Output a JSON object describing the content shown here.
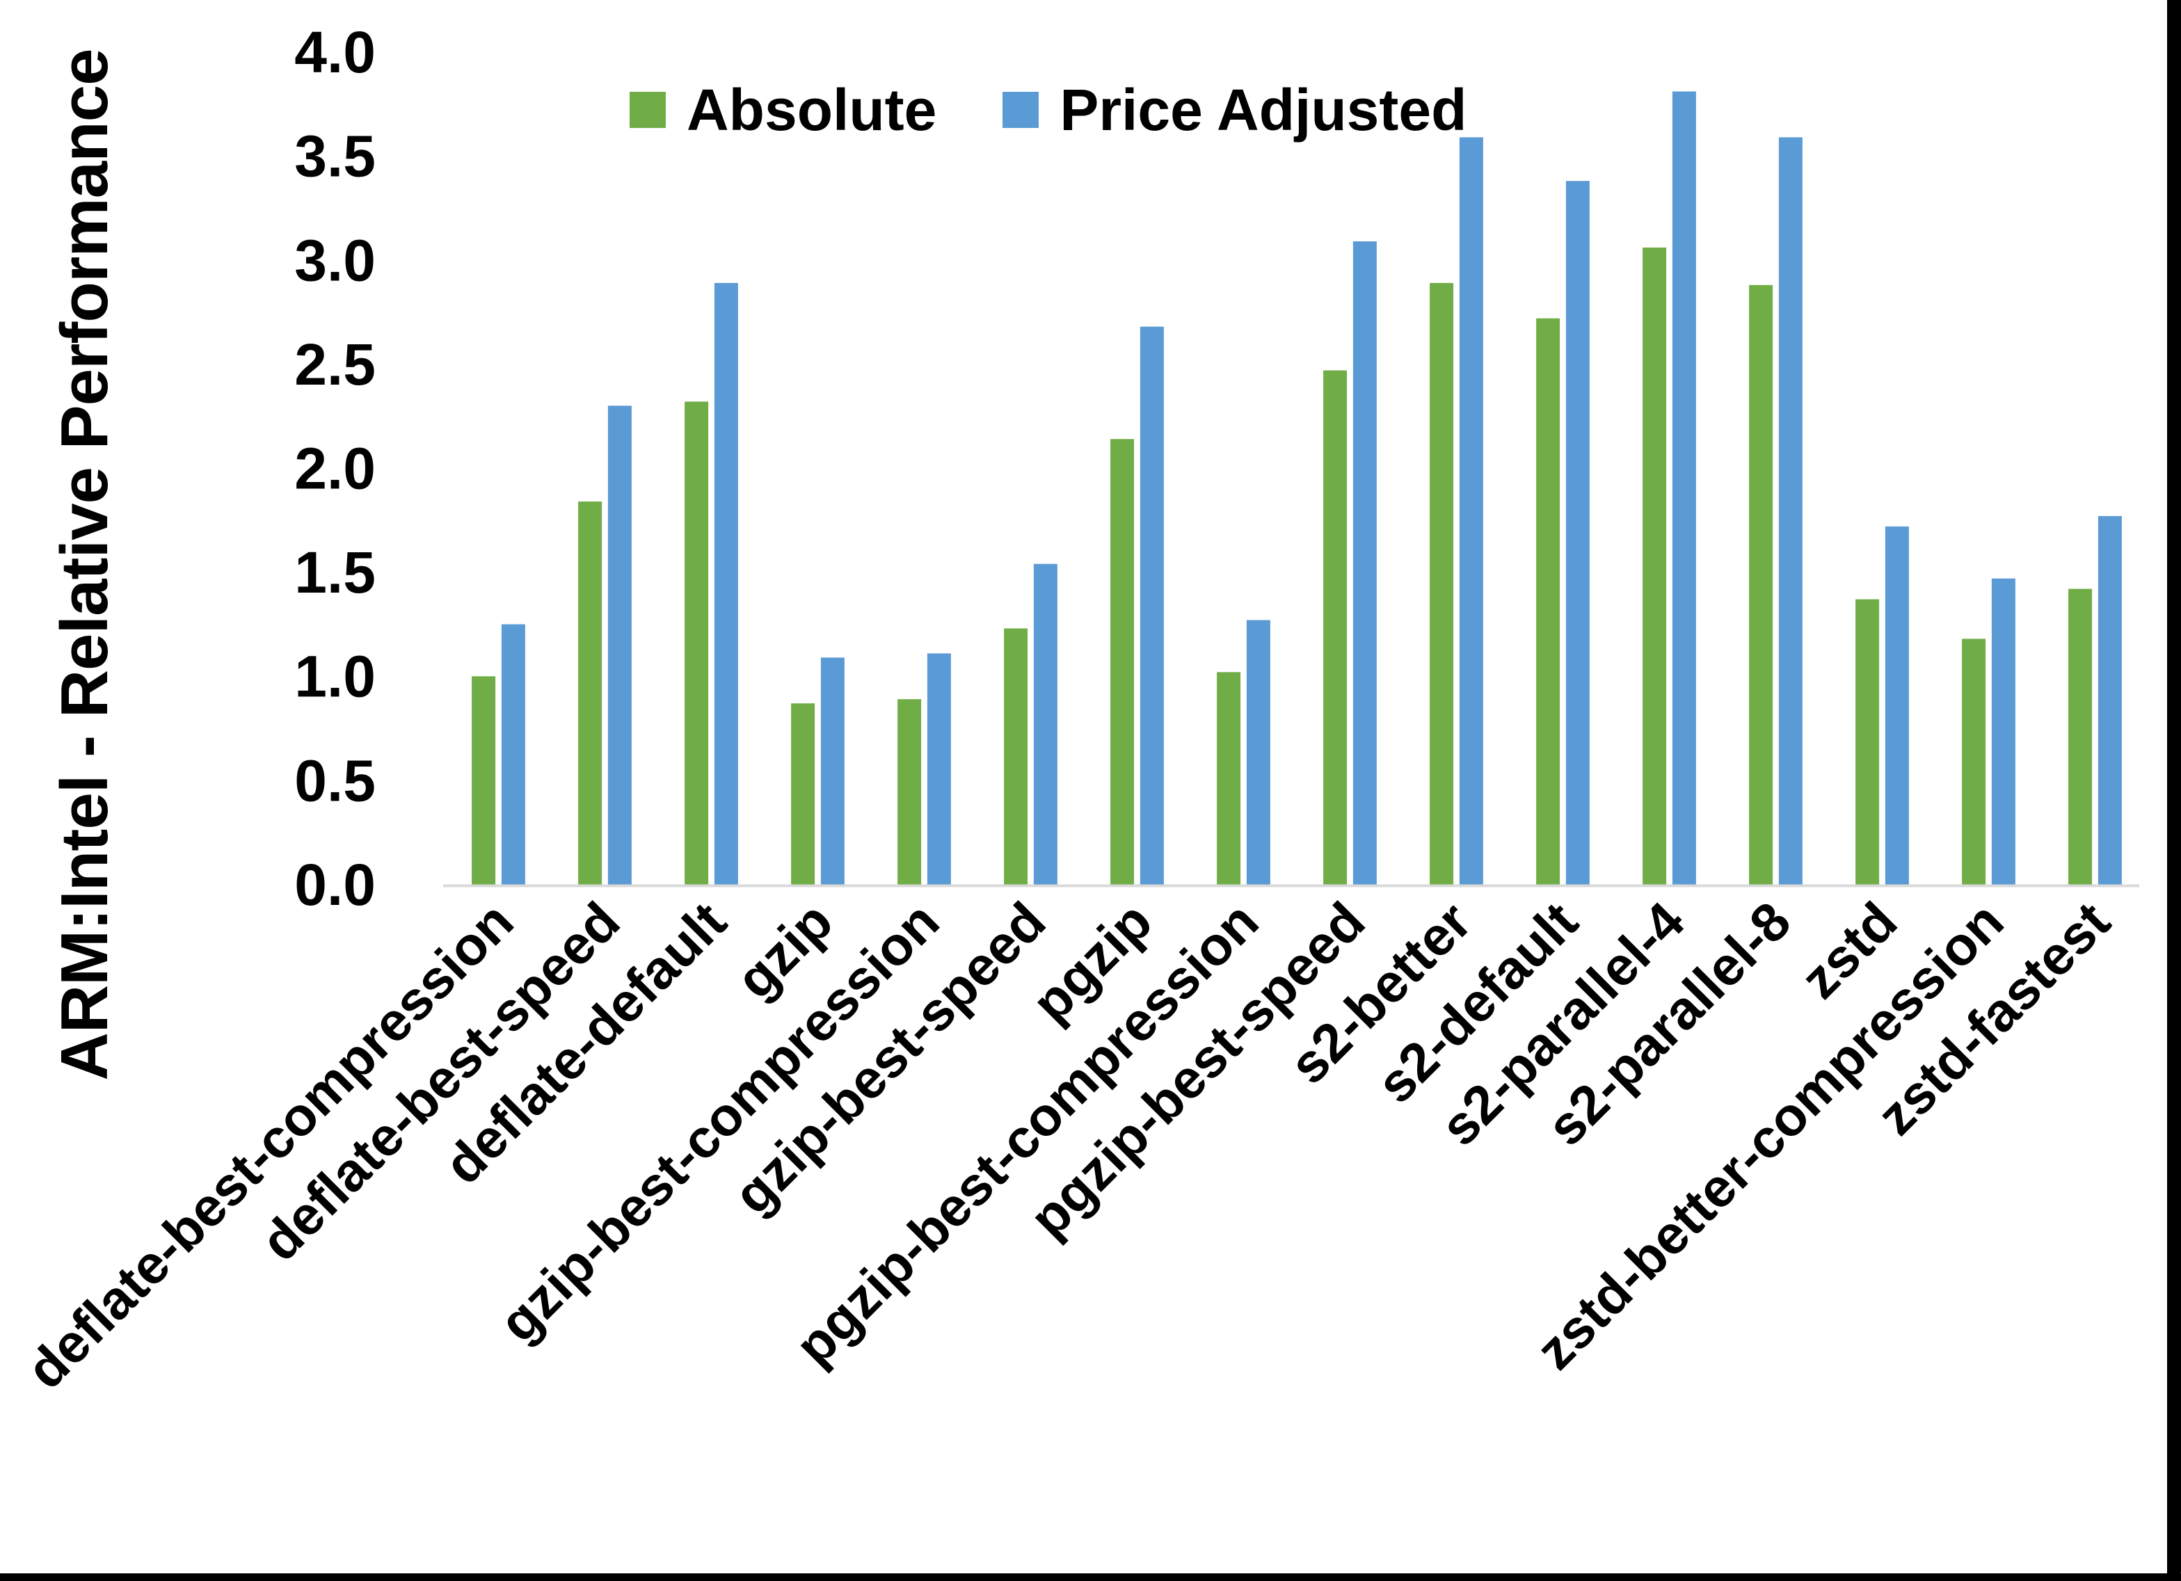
{
  "frame": {
    "background": "#ffffff",
    "border_color": "#000000"
  },
  "chart_data": {
    "type": "bar",
    "title": "",
    "ylabel": "ARM:Intel - Relative Performance",
    "xlabel": "",
    "ylim": [
      0.0,
      4.0
    ],
    "ytick_step": 0.5,
    "ytick_labels": [
      "0.0",
      "0.5",
      "1.0",
      "1.5",
      "2.0",
      "2.5",
      "3.0",
      "3.5",
      "4.0"
    ],
    "grid": false,
    "legend_position": "top",
    "axis_line_color": "#d9d9d9",
    "categories": [
      "deflate-best-compression",
      "deflate-best-speed",
      "deflate-default",
      "gzip",
      "gzip-best-compression",
      "gzip-best-speed",
      "pgzip",
      "pgzip-best-compression",
      "pgzip-best-speed",
      "s2-better",
      "s2-default",
      "s2-parallel-4",
      "s2-parallel-8",
      "zstd",
      "zstd-better-compression",
      "zstd-fastest"
    ],
    "series": [
      {
        "name": "Absolute",
        "color": "#70AD47",
        "values": [
          1.0,
          1.84,
          2.32,
          0.87,
          0.89,
          1.23,
          2.14,
          1.02,
          2.47,
          2.89,
          2.72,
          3.06,
          2.88,
          1.37,
          1.18,
          1.42
        ]
      },
      {
        "name": "Price Adjusted",
        "color": "#5B9BD5",
        "values": [
          1.25,
          2.3,
          2.89,
          1.09,
          1.11,
          1.54,
          2.68,
          1.27,
          3.09,
          3.59,
          3.38,
          3.81,
          3.59,
          1.72,
          1.47,
          1.77
        ]
      }
    ]
  }
}
